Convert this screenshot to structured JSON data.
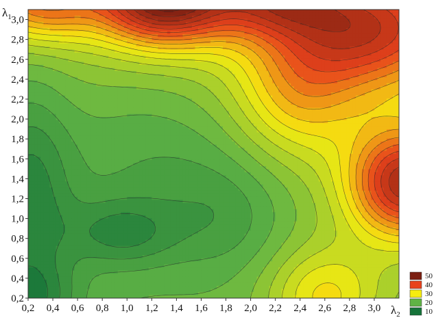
{
  "chart_data": {
    "type": "heatmap",
    "subtype": "filled-contour",
    "title": "",
    "xlabel": "λ",
    "xlabel_subscript": "2",
    "ylabel": "λ",
    "ylabel_subscript": "1",
    "xlim": [
      0.2,
      3.2
    ],
    "ylim": [
      0.2,
      3.1
    ],
    "x_ticks": [
      "0,2",
      "0,4",
      "0,6",
      "0,8",
      "1,0",
      "1,2",
      "1,4",
      "1,6",
      "1,8",
      "2,0",
      "2,2",
      "2,4",
      "2,6",
      "2,8",
      "3,0"
    ],
    "x_tick_values": [
      0.2,
      0.4,
      0.6,
      0.8,
      1.0,
      1.2,
      1.4,
      1.6,
      1.8,
      2.0,
      2.2,
      2.4,
      2.6,
      2.8,
      3.0
    ],
    "y_ticks": [
      "0,2",
      "0,4",
      "0,6",
      "0,8",
      "1,0",
      "1,2",
      "1,4",
      "1,6",
      "1,8",
      "2,0",
      "2,2",
      "2,4",
      "2,6",
      "2,8",
      "3,0"
    ],
    "y_tick_values": [
      0.2,
      0.4,
      0.6,
      0.8,
      1.0,
      1.2,
      1.4,
      1.6,
      1.8,
      2.0,
      2.2,
      2.4,
      2.6,
      2.8,
      3.0
    ],
    "legend": {
      "placement": "bottom-right",
      "entries": [
        {
          "label": "50",
          "value": 50,
          "color": "#7b1f12"
        },
        {
          "label": "40",
          "value": 40,
          "color": "#e8421c"
        },
        {
          "label": "30",
          "value": 30,
          "color": "#f6ec10"
        },
        {
          "label": "20",
          "value": 20,
          "color": "#5fb345"
        },
        {
          "label": "10",
          "value": 10,
          "color": "#157339"
        }
      ]
    },
    "value_range": [
      10,
      52
    ],
    "contour_step": 2,
    "grid": false,
    "contour_lines": true,
    "z_samples": [
      {
        "x": 0.25,
        "y": 0.3,
        "z": 12
      },
      {
        "x": 0.35,
        "y": 1.5,
        "z": 13
      },
      {
        "x": 0.9,
        "y": 0.85,
        "z": 17
      },
      {
        "x": 1.1,
        "y": 1.0,
        "z": 18
      },
      {
        "x": 1.3,
        "y": 3.1,
        "z": 52
      },
      {
        "x": 0.6,
        "y": 3.1,
        "z": 39
      },
      {
        "x": 2.0,
        "y": 3.1,
        "z": 40
      },
      {
        "x": 3.1,
        "y": 3.0,
        "z": 40
      },
      {
        "x": 3.2,
        "y": 1.4,
        "z": 52
      },
      {
        "x": 3.1,
        "y": 0.3,
        "z": 33
      },
      {
        "x": 2.4,
        "y": 0.3,
        "z": 28
      },
      {
        "x": 2.0,
        "y": 2.0,
        "z": 25
      },
      {
        "x": 1.5,
        "y": 1.5,
        "z": 20
      },
      {
        "x": 0.3,
        "y": 2.5,
        "z": 24
      }
    ]
  }
}
